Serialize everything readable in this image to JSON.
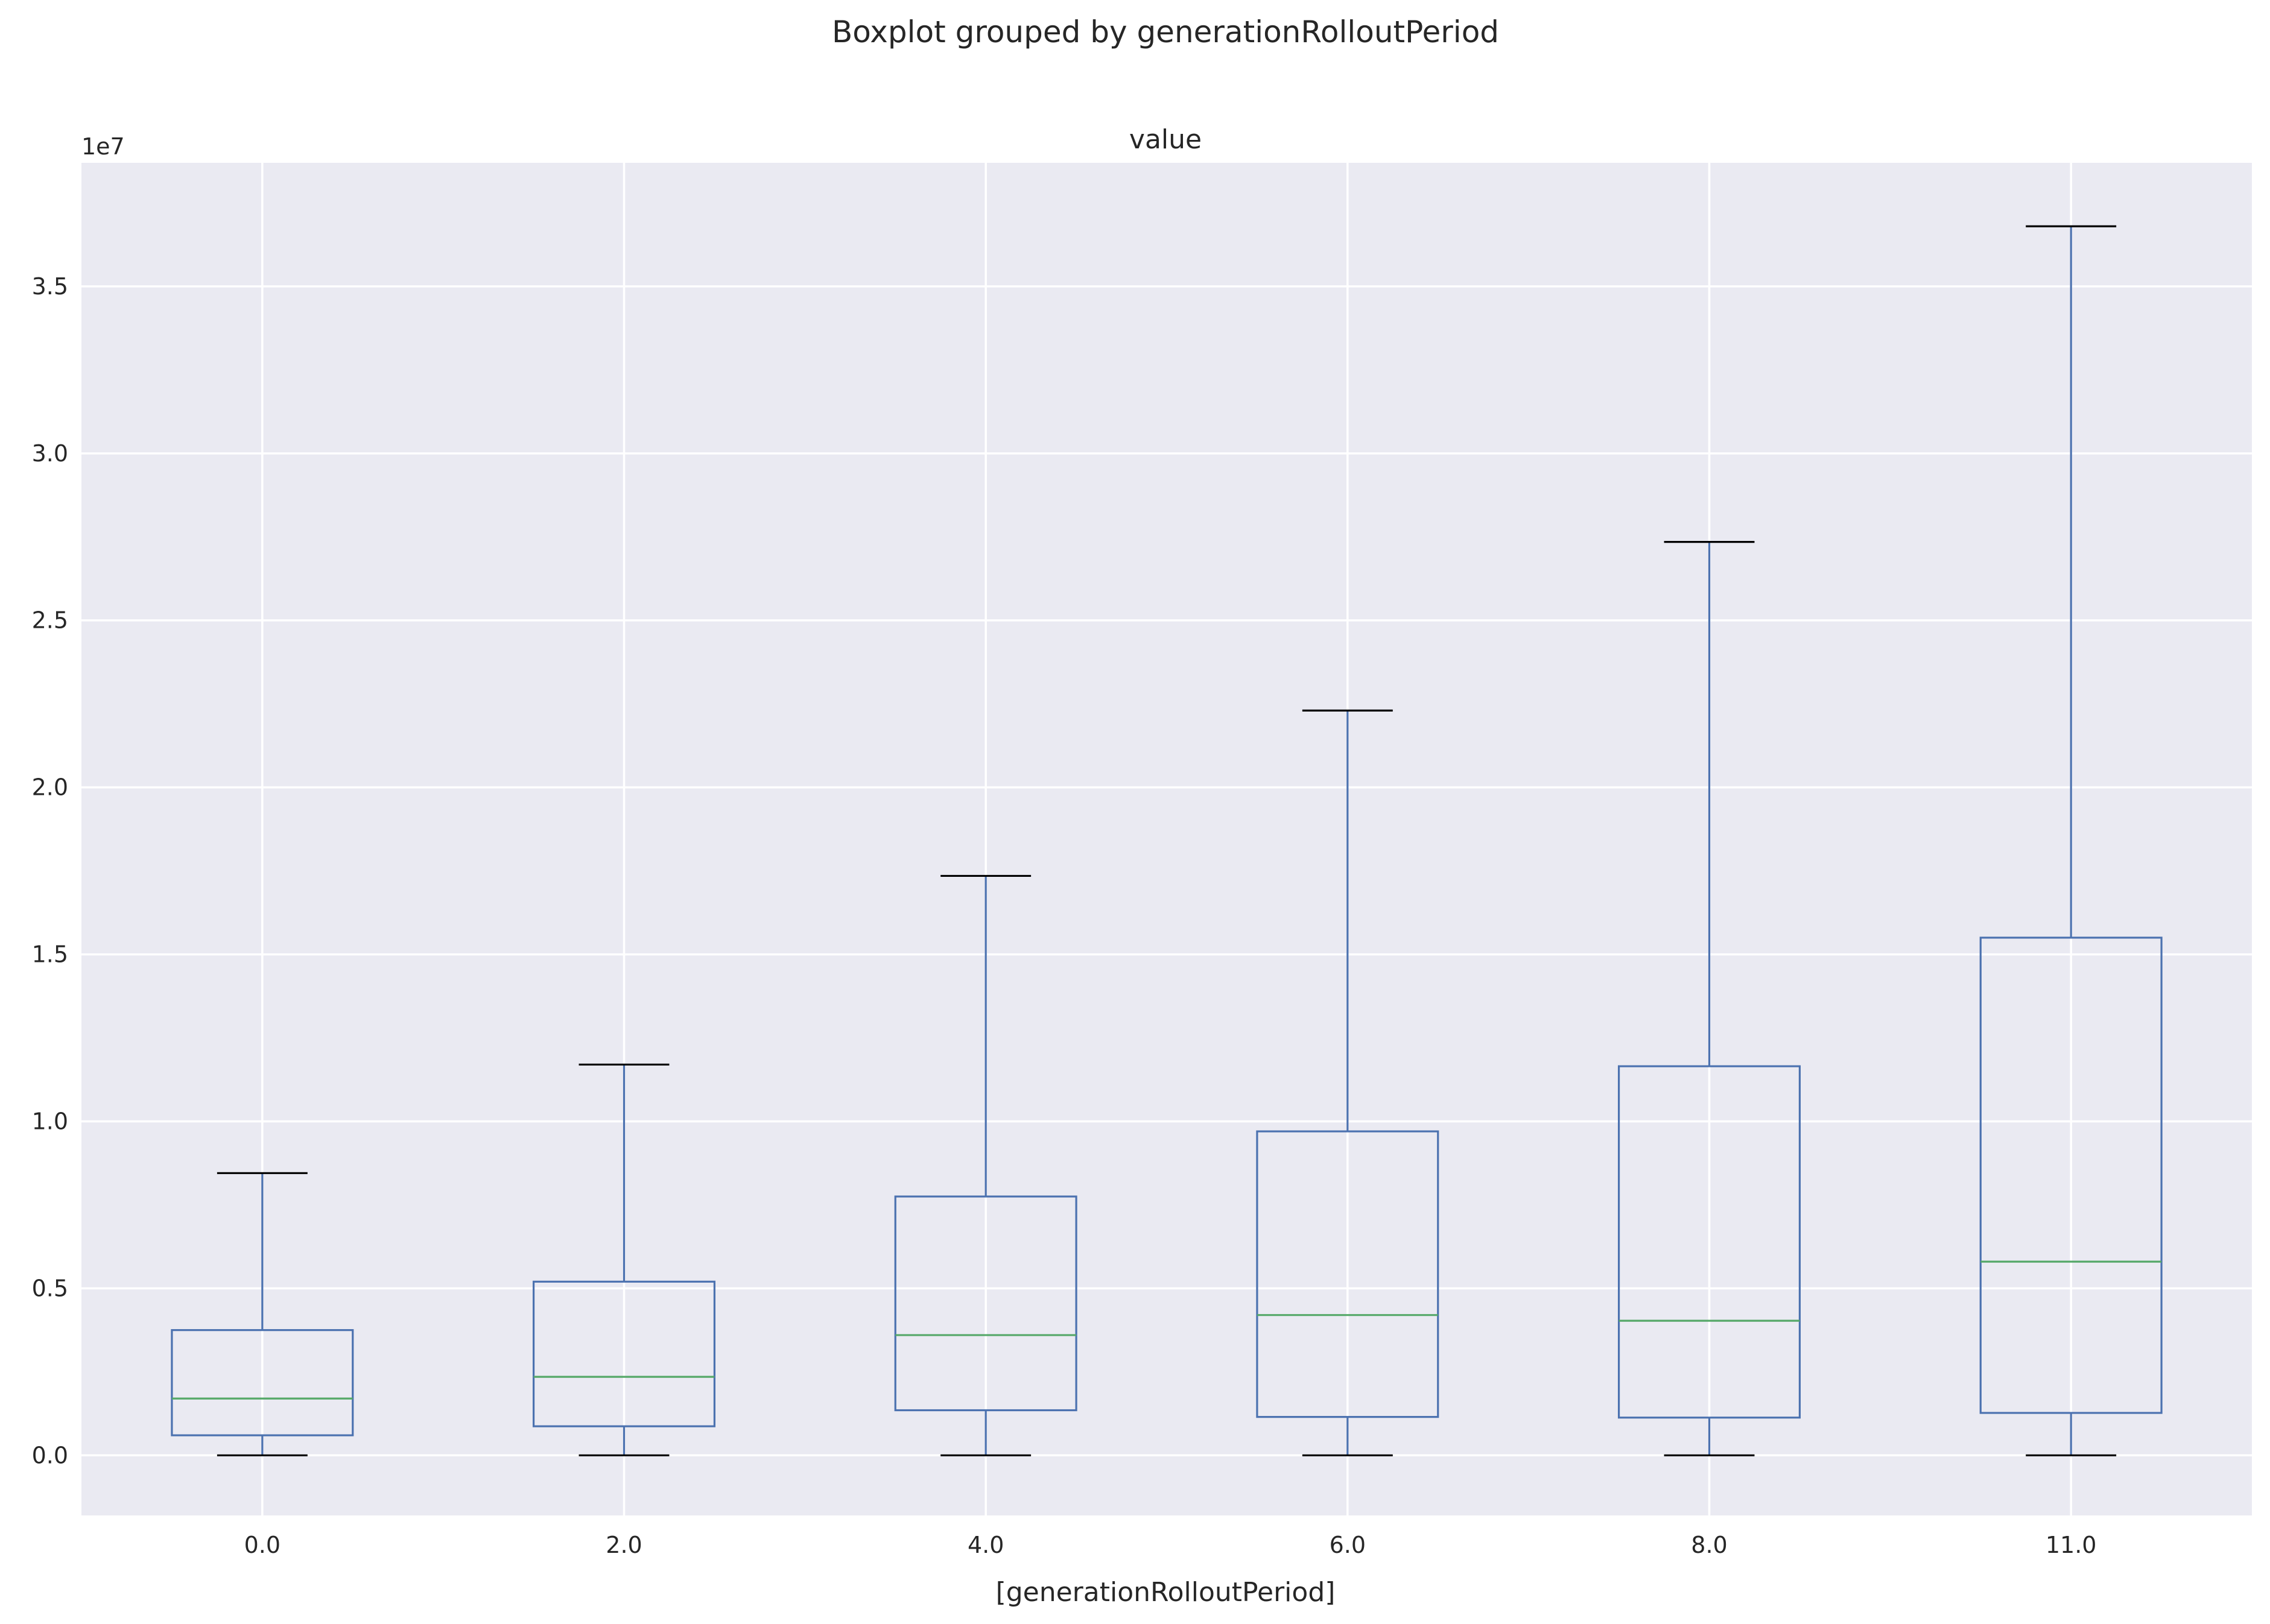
{
  "chart_data": {
    "type": "boxplot",
    "suptitle": "Boxplot grouped by generationRolloutPeriod",
    "title": "value",
    "xlabel": "[generationRolloutPeriod]",
    "ylabel": "",
    "y_offset_label": "1e7",
    "ylim": [
      -1800000,
      38700000
    ],
    "yticks": [
      0,
      5000000,
      10000000,
      15000000,
      20000000,
      25000000,
      30000000,
      35000000
    ],
    "ytick_labels": [
      "0.0",
      "0.5",
      "1.0",
      "1.5",
      "2.0",
      "2.5",
      "3.0",
      "3.5"
    ],
    "categories": [
      "0.0",
      "2.0",
      "4.0",
      "6.0",
      "8.0",
      "11.0"
    ],
    "boxes": [
      {
        "whisker_low": 0,
        "q1": 600000,
        "median": 1700000,
        "q3": 3750000,
        "whisker_high": 8450000
      },
      {
        "whisker_low": 0,
        "q1": 870000,
        "median": 2350000,
        "q3": 5200000,
        "whisker_high": 11700000
      },
      {
        "whisker_low": 0,
        "q1": 1350000,
        "median": 3600000,
        "q3": 7750000,
        "whisker_high": 17350000
      },
      {
        "whisker_low": 0,
        "q1": 1150000,
        "median": 4200000,
        "q3": 9700000,
        "whisker_high": 22300000
      },
      {
        "whisker_low": 0,
        "q1": 1130000,
        "median": 4030000,
        "q3": 11650000,
        "whisker_high": 27350000
      },
      {
        "whisker_low": 0,
        "q1": 1270000,
        "median": 5800000,
        "q3": 15500000,
        "whisker_high": 36800000
      }
    ],
    "grid": true,
    "colors": {
      "background": "#eaeaf2",
      "grid": "#ffffff",
      "box": "#4c72b0",
      "median": "#55a868",
      "cap": "#000000"
    }
  }
}
